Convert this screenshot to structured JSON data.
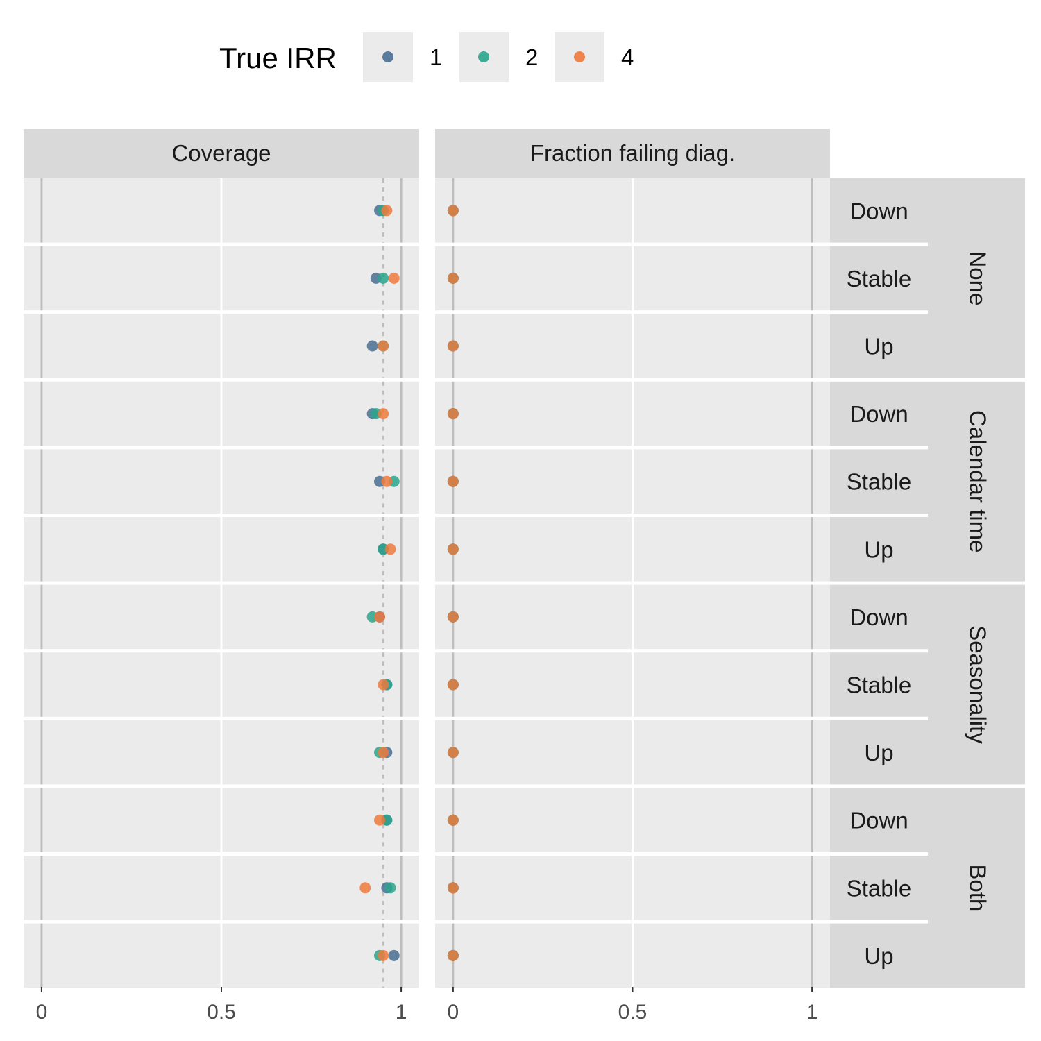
{
  "chart_data": {
    "type": "scatter",
    "legend": {
      "title": "True IRR",
      "position": "top",
      "entries": [
        {
          "label": "1",
          "color": "#4a6f92"
        },
        {
          "label": "2",
          "color": "#2aa58c"
        },
        {
          "label": "4",
          "color": "#ef7a3d"
        }
      ]
    },
    "panels": [
      {
        "label": "Coverage",
        "xlim": [
          -0.05,
          1.05
        ],
        "ticks": [
          "0",
          "0.5",
          "1"
        ],
        "tick_values": [
          0,
          0.5,
          1
        ],
        "reference_line": 0.95
      },
      {
        "label": "Fraction failing diag.",
        "xlim": [
          -0.05,
          1.05
        ],
        "ticks": [
          "0",
          "0.5",
          "1"
        ],
        "tick_values": [
          0,
          0.5,
          1
        ],
        "reference_line": null
      }
    ],
    "row_groups": [
      {
        "label": "None",
        "rows": [
          "Down",
          "Stable",
          "Up"
        ]
      },
      {
        "label": "Calendar time",
        "rows": [
          "Down",
          "Stable",
          "Up"
        ]
      },
      {
        "label": "Seasonality",
        "rows": [
          "Down",
          "Stable",
          "Up"
        ]
      },
      {
        "label": "Both",
        "rows": [
          "Down",
          "Stable",
          "Up"
        ]
      }
    ],
    "series": [
      {
        "name": "1",
        "coverage": [
          0.94,
          0.93,
          0.92,
          0.92,
          0.94,
          0.95,
          0.94,
          0.96,
          0.96,
          0.96,
          0.96,
          0.98
        ],
        "fraction_failing": [
          0,
          0,
          0,
          0,
          0,
          0,
          0,
          0,
          0,
          0,
          0,
          0
        ]
      },
      {
        "name": "2",
        "coverage": [
          0.95,
          0.95,
          0.95,
          0.93,
          0.98,
          0.95,
          0.92,
          0.96,
          0.94,
          0.96,
          0.97,
          0.94
        ]
      },
      {
        "name": "4",
        "coverage": [
          0.96,
          0.98,
          0.95,
          0.95,
          0.96,
          0.97,
          0.94,
          0.95,
          0.95,
          0.94,
          0.9,
          0.95
        ],
        "fraction_failing": [
          0,
          0,
          0,
          0,
          0,
          0,
          0,
          0,
          0,
          0,
          0,
          0
        ]
      }
    ],
    "grid": true
  }
}
